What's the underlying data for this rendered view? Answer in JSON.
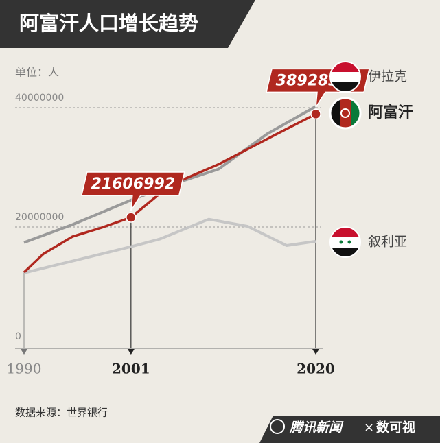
{
  "chart_data": {
    "type": "line",
    "title": "阿富汗人口增长趋势",
    "unit_label": "单位：人",
    "source": "数据来源：世界银行",
    "footer_brand": "腾讯新闻",
    "footer_partner": "数可视",
    "ylim": [
      0,
      40000000
    ],
    "yticks": [
      0,
      20000000,
      40000000
    ],
    "xlim": [
      1990,
      2020
    ],
    "xticks": [
      1990,
      2001,
      2020
    ],
    "bold_xticks": [
      2001,
      2020
    ],
    "grid": true,
    "data_labels_at_x": [
      2001,
      2020
    ],
    "series": [
      {
        "name": "伊拉克",
        "color": "#9a9a9a",
        "x": [
          1990,
          1995,
          2001,
          2005,
          2010,
          2015,
          2020
        ],
        "values": [
          17400000,
          20400000,
          24500000,
          27000000,
          29700000,
          35600000,
          40200000
        ]
      },
      {
        "name": "阿富汗",
        "color": "#b0281f",
        "x": [
          1990,
          1992,
          1995,
          1998,
          2001,
          2005,
          2010,
          2016,
          2020
        ],
        "values": [
          12400000,
          15500000,
          18400000,
          19900000,
          21606992,
          27000000,
          30500000,
          35600000,
          38928341
        ]
      },
      {
        "name": "叙利亚",
        "color": "#c6c6c6",
        "x": [
          1990,
          2001,
          2004,
          2009,
          2013,
          2017,
          2020
        ],
        "values": [
          12300000,
          16700000,
          18000000,
          21300000,
          20100000,
          16900000,
          17600000
        ]
      }
    ]
  }
}
